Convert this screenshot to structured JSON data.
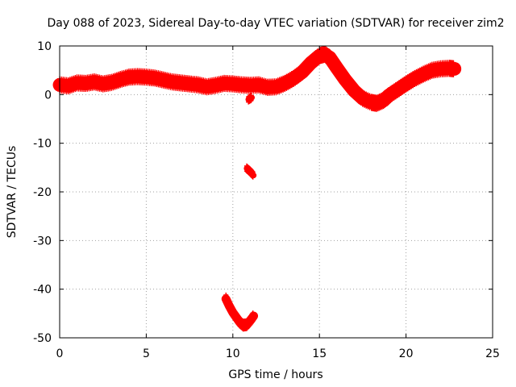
{
  "chart_data": {
    "type": "scatter",
    "title": "Day 088 of 2023, Sidereal Day-to-day VTEC variation (SDTVAR) for receiver zim2",
    "xlabel": "GPS time / hours",
    "ylabel": "SDTVAR / TECUs",
    "xlim": [
      0,
      25
    ],
    "ylim": [
      -50,
      10
    ],
    "xticks": [
      0,
      5,
      10,
      15,
      20,
      25
    ],
    "yticks": [
      10,
      0,
      -10,
      -20,
      -30,
      -40,
      -50
    ],
    "grid": true,
    "color": "#ff0000",
    "series": [
      {
        "name": "main",
        "band": 1.4,
        "points": [
          [
            0,
            2.0
          ],
          [
            0.5,
            1.8
          ],
          [
            1.0,
            2.4
          ],
          [
            1.5,
            2.3
          ],
          [
            2.0,
            2.6
          ],
          [
            2.5,
            2.2
          ],
          [
            3.0,
            2.5
          ],
          [
            3.5,
            3.1
          ],
          [
            4.0,
            3.6
          ],
          [
            4.5,
            3.7
          ],
          [
            5.0,
            3.6
          ],
          [
            5.5,
            3.4
          ],
          [
            6.0,
            3.0
          ],
          [
            6.5,
            2.6
          ],
          [
            7.0,
            2.4
          ],
          [
            7.5,
            2.2
          ],
          [
            8.0,
            2.0
          ],
          [
            8.5,
            1.6
          ],
          [
            9.0,
            1.9
          ],
          [
            9.5,
            2.3
          ],
          [
            10.0,
            2.2
          ],
          [
            10.5,
            2.0
          ],
          [
            11.0,
            1.9
          ],
          [
            11.5,
            2.0
          ],
          [
            12.0,
            1.5
          ],
          [
            12.5,
            1.6
          ],
          [
            13.0,
            2.3
          ],
          [
            13.5,
            3.3
          ],
          [
            14.0,
            4.6
          ],
          [
            14.5,
            6.5
          ],
          [
            15.0,
            8.0
          ],
          [
            15.3,
            8.3
          ],
          [
            15.6,
            7.6
          ],
          [
            16.0,
            5.5
          ],
          [
            16.5,
            3.0
          ],
          [
            17.0,
            0.8
          ],
          [
            17.5,
            -0.8
          ],
          [
            18.0,
            -1.6
          ],
          [
            18.3,
            -1.8
          ],
          [
            18.7,
            -1.2
          ],
          [
            19.0,
            -0.2
          ],
          [
            19.5,
            1.0
          ],
          [
            20.0,
            2.2
          ],
          [
            20.5,
            3.3
          ],
          [
            21.0,
            4.2
          ],
          [
            21.5,
            5.0
          ],
          [
            22.0,
            5.3
          ],
          [
            22.5,
            5.4
          ],
          [
            22.8,
            5.3
          ]
        ]
      },
      {
        "name": "dip-segment",
        "band": 0.9,
        "points": [
          [
            9.6,
            -42.0
          ],
          [
            9.8,
            -43.5
          ],
          [
            10.0,
            -44.8
          ],
          [
            10.2,
            -45.8
          ],
          [
            10.4,
            -46.8
          ],
          [
            10.6,
            -47.4
          ],
          [
            10.8,
            -47.3
          ],
          [
            11.0,
            -46.5
          ],
          [
            11.2,
            -45.5
          ]
        ]
      },
      {
        "name": "short-segment",
        "band": 0.6,
        "points": [
          [
            10.8,
            -15.2
          ],
          [
            11.0,
            -15.8
          ],
          [
            11.2,
            -16.6
          ]
        ]
      },
      {
        "name": "isolated",
        "band": 0.6,
        "points": [
          [
            10.9,
            -1.0
          ],
          [
            11.1,
            -0.6
          ]
        ]
      }
    ]
  }
}
